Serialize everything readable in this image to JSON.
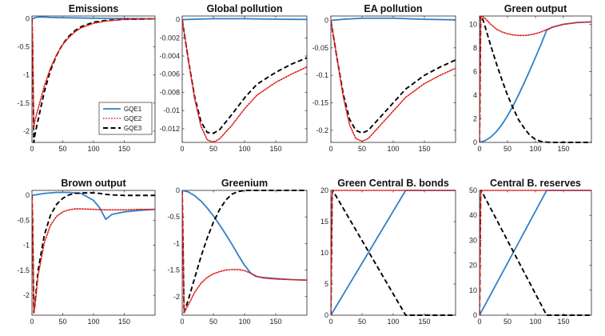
{
  "colors": {
    "GQE1": "#2f80c8",
    "GQE2": "#e0201c",
    "GQE3": "#000000"
  },
  "chart_data": [
    {
      "type": "line",
      "title": "Emissions",
      "xlim": [
        0,
        200
      ],
      "ylim": [
        -2.2,
        0.05
      ],
      "xticks": [
        0,
        50,
        100,
        150
      ],
      "xtick_labels": [
        "0",
        "50",
        "100",
        "150"
      ],
      "yticks": [
        0,
        -0.5,
        -1,
        -1.5,
        -2
      ],
      "ytick_labels": [
        "0",
        "-0.5",
        "-1",
        "-1.5",
        "-2"
      ],
      "legend": {
        "position": "bottom-right",
        "entries": [
          "GQE1",
          "GQE2",
          "GQE3"
        ]
      },
      "series": [
        {
          "name": "GQE1",
          "style": "solid",
          "x": [
            0,
            3,
            5,
            10,
            20,
            30,
            50,
            100,
            150,
            200
          ],
          "y": [
            0,
            0.01,
            0.02,
            0.03,
            0.03,
            0.025,
            0.02,
            0.01,
            0.005,
            0
          ]
        },
        {
          "name": "GQE2",
          "style": "dotted",
          "x": [
            0,
            1,
            3,
            5,
            10,
            20,
            30,
            40,
            50,
            60,
            70,
            80,
            100,
            120,
            150,
            200
          ],
          "y": [
            0,
            -0.4,
            -1.95,
            -1.8,
            -1.6,
            -1.2,
            -0.88,
            -0.64,
            -0.46,
            -0.33,
            -0.23,
            -0.16,
            -0.08,
            -0.04,
            -0.01,
            0
          ]
        },
        {
          "name": "GQE3",
          "style": "dashed",
          "x": [
            0,
            1,
            3,
            5,
            10,
            20,
            30,
            40,
            50,
            60,
            70,
            80,
            100,
            120,
            150,
            200
          ],
          "y": [
            0,
            -0.5,
            -2.2,
            -2.05,
            -1.8,
            -1.3,
            -0.92,
            -0.65,
            -0.45,
            -0.31,
            -0.21,
            -0.14,
            -0.06,
            -0.03,
            -0.01,
            0
          ]
        }
      ]
    },
    {
      "type": "line",
      "title": "Global pollution",
      "xlim": [
        0,
        200
      ],
      "ylim": [
        -0.0135,
        0.0004
      ],
      "xticks": [
        0,
        50,
        100,
        150
      ],
      "xtick_labels": [
        "0",
        "50",
        "100",
        "150"
      ],
      "yticks": [
        0,
        -0.002,
        -0.004,
        -0.006,
        -0.008,
        -0.01,
        -0.012
      ],
      "ytick_labels": [
        "0",
        "-0.002",
        "-0.004",
        "-0.006",
        "-0.008",
        "-0.01",
        "-0.012"
      ],
      "series": [
        {
          "name": "GQE1",
          "style": "solid",
          "x": [
            0,
            20,
            50,
            100,
            150,
            200
          ],
          "y": [
            0,
            5e-05,
            0.0001,
            0.0001,
            5e-05,
            2e-05
          ]
        },
        {
          "name": "GQE2",
          "style": "dotted",
          "x": [
            0,
            10,
            20,
            30,
            40,
            50,
            60,
            80,
            100,
            120,
            150,
            175,
            200
          ],
          "y": [
            0,
            -0.0045,
            -0.0087,
            -0.0117,
            -0.0132,
            -0.0135,
            -0.0131,
            -0.0116,
            -0.0098,
            -0.0083,
            -0.0069,
            -0.006,
            -0.0052
          ]
        },
        {
          "name": "GQE3",
          "style": "dashed",
          "x": [
            0,
            10,
            20,
            30,
            40,
            50,
            60,
            80,
            100,
            120,
            150,
            175,
            200
          ],
          "y": [
            0,
            -0.0045,
            -0.0085,
            -0.0112,
            -0.0124,
            -0.0125,
            -0.0121,
            -0.0104,
            -0.0086,
            -0.0071,
            -0.0058,
            -0.0049,
            -0.0042
          ]
        }
      ]
    },
    {
      "type": "line",
      "title": "EA pollution",
      "xlim": [
        0,
        200
      ],
      "ylim": [
        -0.222,
        0.008
      ],
      "xticks": [
        0,
        50,
        100,
        150
      ],
      "xtick_labels": [
        "0",
        "50",
        "100",
        "150"
      ],
      "yticks": [
        0,
        -0.05,
        -0.1,
        -0.15,
        -0.2
      ],
      "ytick_labels": [
        "0",
        "-0.05",
        "-0.1",
        "-0.15",
        "-0.2"
      ],
      "series": [
        {
          "name": "GQE1",
          "style": "solid",
          "x": [
            0,
            20,
            50,
            100,
            150,
            200
          ],
          "y": [
            0,
            0.002,
            0.004,
            0.004,
            0.002,
            0.001
          ]
        },
        {
          "name": "GQE2",
          "style": "dotted",
          "x": [
            0,
            10,
            20,
            30,
            40,
            50,
            60,
            80,
            100,
            120,
            150,
            175,
            200
          ],
          "y": [
            0,
            -0.07,
            -0.14,
            -0.19,
            -0.215,
            -0.22,
            -0.215,
            -0.19,
            -0.165,
            -0.14,
            -0.115,
            -0.1,
            -0.087
          ]
        },
        {
          "name": "GQE3",
          "style": "dashed",
          "x": [
            0,
            10,
            20,
            30,
            40,
            50,
            60,
            80,
            100,
            120,
            150,
            175,
            200
          ],
          "y": [
            0,
            -0.07,
            -0.135,
            -0.18,
            -0.2,
            -0.205,
            -0.2,
            -0.175,
            -0.15,
            -0.125,
            -0.1,
            -0.085,
            -0.072
          ]
        }
      ]
    },
    {
      "type": "line",
      "title": "Green output",
      "xlim": [
        0,
        200
      ],
      "ylim": [
        0,
        10.7
      ],
      "xticks": [
        0,
        50,
        100,
        150
      ],
      "xtick_labels": [
        "0",
        "50",
        "100",
        "150"
      ],
      "yticks": [
        0,
        2,
        4,
        6,
        8,
        10
      ],
      "ytick_labels": [
        "0",
        "2",
        "4",
        "6",
        "8",
        "10"
      ],
      "series": [
        {
          "name": "GQE1",
          "style": "solid",
          "x": [
            0,
            10,
            20,
            30,
            40,
            50,
            60,
            70,
            80,
            90,
            100,
            110,
            120,
            130,
            150,
            175,
            200
          ],
          "y": [
            0,
            0.15,
            0.45,
            0.9,
            1.5,
            2.25,
            3.1,
            4.05,
            5.05,
            6.1,
            7.2,
            8.3,
            9.5,
            9.75,
            10.0,
            10.15,
            10.2
          ]
        },
        {
          "name": "GQE2",
          "style": "dotted",
          "x": [
            0,
            2,
            4,
            10,
            20,
            30,
            40,
            50,
            60,
            70,
            80,
            90,
            100,
            110,
            120,
            130,
            150,
            175,
            200
          ],
          "y": [
            0,
            10.6,
            10.7,
            10.5,
            10.0,
            9.6,
            9.35,
            9.2,
            9.1,
            9.05,
            9.05,
            9.1,
            9.2,
            9.35,
            9.55,
            9.75,
            10.0,
            10.15,
            10.2
          ]
        },
        {
          "name": "GQE3",
          "style": "dashed",
          "x": [
            0,
            2,
            4,
            10,
            20,
            30,
            40,
            50,
            60,
            70,
            80,
            90,
            100,
            110,
            120,
            130,
            150,
            175,
            200
          ],
          "y": [
            0,
            10.6,
            10.7,
            9.8,
            8.2,
            6.7,
            5.3,
            4.0,
            2.9,
            1.9,
            1.2,
            0.6,
            0.25,
            0.08,
            0.02,
            0,
            0,
            0,
            0
          ]
        }
      ]
    },
    {
      "type": "line",
      "title": "Brown output",
      "xlim": [
        0,
        200
      ],
      "ylim": [
        -2.4,
        0.1
      ],
      "xticks": [
        0,
        50,
        100,
        150
      ],
      "xtick_labels": [
        "0",
        "50",
        "100",
        "150"
      ],
      "yticks": [
        0,
        -0.5,
        -1,
        -1.5,
        -2
      ],
      "ytick_labels": [
        "0",
        "-0.5",
        "-1",
        "-1.5",
        "-2"
      ],
      "series": [
        {
          "name": "GQE1",
          "style": "solid",
          "x": [
            0,
            10,
            20,
            40,
            60,
            80,
            100,
            110,
            120,
            130,
            150,
            175,
            200
          ],
          "y": [
            0,
            0.02,
            0.04,
            0.06,
            0.06,
            0.04,
            -0.1,
            -0.25,
            -0.48,
            -0.38,
            -0.33,
            -0.3,
            -0.28
          ]
        },
        {
          "name": "GQE2",
          "style": "dotted",
          "x": [
            0,
            1,
            3,
            5,
            10,
            20,
            30,
            40,
            50,
            60,
            70,
            80,
            100,
            120,
            150,
            175,
            200
          ],
          "y": [
            0,
            -0.5,
            -2.35,
            -2.2,
            -1.6,
            -0.95,
            -0.6,
            -0.42,
            -0.33,
            -0.29,
            -0.27,
            -0.27,
            -0.28,
            -0.29,
            -0.29,
            -0.28,
            -0.28
          ]
        },
        {
          "name": "GQE3",
          "style": "dashed",
          "x": [
            0,
            1,
            3,
            5,
            10,
            20,
            30,
            40,
            50,
            60,
            70,
            80,
            90,
            100,
            110,
            120,
            130,
            150,
            200
          ],
          "y": [
            0,
            -0.5,
            -2.35,
            -2.15,
            -1.5,
            -0.8,
            -0.4,
            -0.18,
            -0.06,
            0.01,
            0.04,
            0.05,
            0.05,
            0.05,
            0.04,
            0.02,
            0.01,
            0,
            0
          ]
        }
      ]
    },
    {
      "type": "line",
      "title": "Greenium",
      "xlim": [
        0,
        200
      ],
      "ylim": [
        -2.35,
        0
      ],
      "xticks": [
        0,
        50,
        100,
        150
      ],
      "xtick_labels": [
        "0",
        "50",
        "100",
        "150"
      ],
      "yticks": [
        0,
        -0.5,
        -1,
        -1.5,
        -2
      ],
      "ytick_labels": [
        "0",
        "-0.5",
        "-1",
        "-1.5",
        "-2"
      ],
      "series": [
        {
          "name": "GQE1",
          "style": "solid",
          "x": [
            0,
            10,
            20,
            30,
            40,
            50,
            60,
            70,
            80,
            90,
            100,
            110,
            118,
            130,
            150,
            175,
            200
          ],
          "y": [
            0,
            -0.03,
            -0.1,
            -0.2,
            -0.33,
            -0.48,
            -0.65,
            -0.83,
            -1.02,
            -1.22,
            -1.41,
            -1.56,
            -1.62,
            -1.64,
            -1.66,
            -1.68,
            -1.69
          ]
        },
        {
          "name": "GQE2",
          "style": "dotted",
          "x": [
            0,
            3,
            10,
            20,
            30,
            40,
            50,
            60,
            70,
            80,
            90,
            100,
            110,
            120,
            130,
            150,
            175,
            200
          ],
          "y": [
            0,
            -2.3,
            -2.15,
            -1.92,
            -1.75,
            -1.64,
            -1.57,
            -1.53,
            -1.5,
            -1.49,
            -1.49,
            -1.51,
            -1.56,
            -1.62,
            -1.65,
            -1.67,
            -1.68,
            -1.69
          ]
        },
        {
          "name": "GQE3",
          "style": "dashed",
          "x": [
            0,
            3,
            10,
            20,
            30,
            40,
            50,
            60,
            70,
            80,
            90,
            100,
            110,
            120,
            150,
            200
          ],
          "y": [
            0,
            -2.3,
            -2.05,
            -1.65,
            -1.25,
            -0.9,
            -0.6,
            -0.36,
            -0.18,
            -0.07,
            -0.02,
            0,
            0,
            0,
            0,
            0
          ]
        }
      ]
    },
    {
      "type": "line",
      "title": "Green Central B. bonds",
      "xlim": [
        0,
        200
      ],
      "ylim": [
        0,
        20
      ],
      "xticks": [
        0,
        50,
        100,
        150
      ],
      "xtick_labels": [
        "0",
        "50",
        "100",
        "150"
      ],
      "yticks": [
        0,
        5,
        10,
        15,
        20
      ],
      "ytick_labels": [
        "0",
        "5",
        "10",
        "15",
        "20"
      ],
      "series": [
        {
          "name": "GQE1",
          "style": "solid",
          "x": [
            0,
            120,
            200
          ],
          "y": [
            0,
            20,
            20
          ]
        },
        {
          "name": "GQE2",
          "style": "dotted",
          "x": [
            0,
            2,
            3,
            200
          ],
          "y": [
            0,
            19,
            20,
            20
          ]
        },
        {
          "name": "GQE3",
          "style": "dashed",
          "x": [
            0,
            2,
            3,
            120,
            200
          ],
          "y": [
            0,
            19,
            20,
            0,
            0
          ]
        }
      ]
    },
    {
      "type": "line",
      "title": "Central B. reserves",
      "xlim": [
        0,
        200
      ],
      "ylim": [
        0,
        50
      ],
      "xticks": [
        0,
        50,
        100,
        150
      ],
      "xtick_labels": [
        "0",
        "50",
        "100",
        "150"
      ],
      "yticks": [
        0,
        10,
        20,
        30,
        40,
        50
      ],
      "ytick_labels": [
        "0",
        "10",
        "20",
        "30",
        "40",
        "50"
      ],
      "series": [
        {
          "name": "GQE1",
          "style": "solid",
          "x": [
            0,
            120,
            200
          ],
          "y": [
            0,
            50,
            50
          ]
        },
        {
          "name": "GQE2",
          "style": "dotted",
          "x": [
            0,
            2,
            3,
            200
          ],
          "y": [
            0,
            48,
            50,
            50
          ]
        },
        {
          "name": "GQE3",
          "style": "dashed",
          "x": [
            0,
            2,
            3,
            120,
            200
          ],
          "y": [
            0,
            48,
            50,
            0,
            0
          ]
        }
      ]
    }
  ]
}
